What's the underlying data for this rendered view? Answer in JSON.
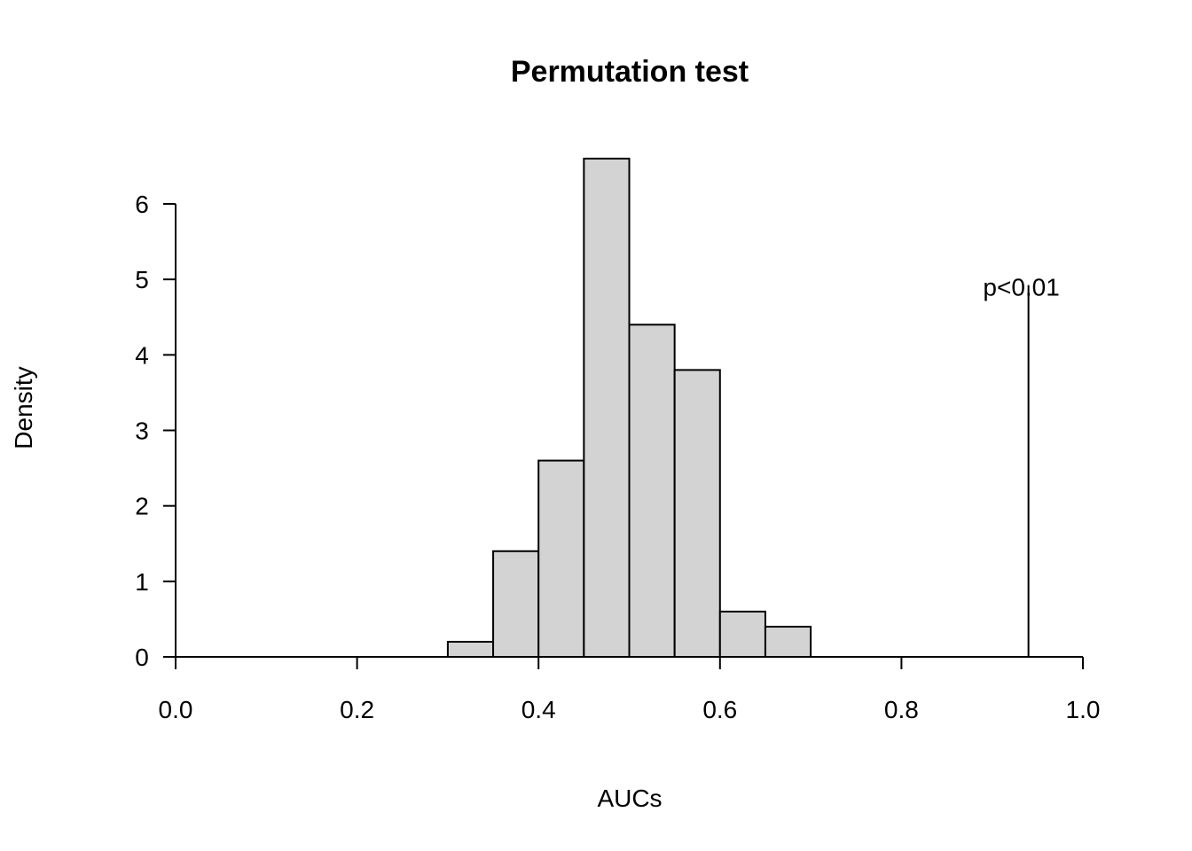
{
  "chart_data": {
    "type": "bar",
    "title": "Permutation test",
    "xlabel": "AUCs",
    "ylabel": "Density",
    "xlim": [
      0,
      1
    ],
    "ylim": [
      0,
      6.6
    ],
    "x_ticks": [
      0.0,
      0.2,
      0.4,
      0.6,
      0.8,
      1.0
    ],
    "x_tick_labels": [
      "0.0",
      "0.2",
      "0.4",
      "0.6",
      "0.8",
      "1.0"
    ],
    "y_ticks": [
      0,
      1,
      2,
      3,
      4,
      5,
      6
    ],
    "y_tick_labels": [
      "0",
      "1",
      "2",
      "3",
      "4",
      "5",
      "6"
    ],
    "bins": [
      {
        "start": 0.3,
        "end": 0.35,
        "density": 0.2
      },
      {
        "start": 0.35,
        "end": 0.4,
        "density": 1.4
      },
      {
        "start": 0.4,
        "end": 0.45,
        "density": 2.6
      },
      {
        "start": 0.45,
        "end": 0.5,
        "density": 6.6
      },
      {
        "start": 0.5,
        "end": 0.55,
        "density": 4.4
      },
      {
        "start": 0.55,
        "end": 0.6,
        "density": 3.8
      },
      {
        "start": 0.6,
        "end": 0.65,
        "density": 0.6
      },
      {
        "start": 0.65,
        "end": 0.7,
        "density": 0.4
      }
    ],
    "reference_line": {
      "x": 0.94,
      "y_top": 4.9
    },
    "annotation": {
      "text": "p<0.01",
      "x": 0.94,
      "y": 4.9
    },
    "bar_color": "#d3d3d3",
    "grid": false
  }
}
